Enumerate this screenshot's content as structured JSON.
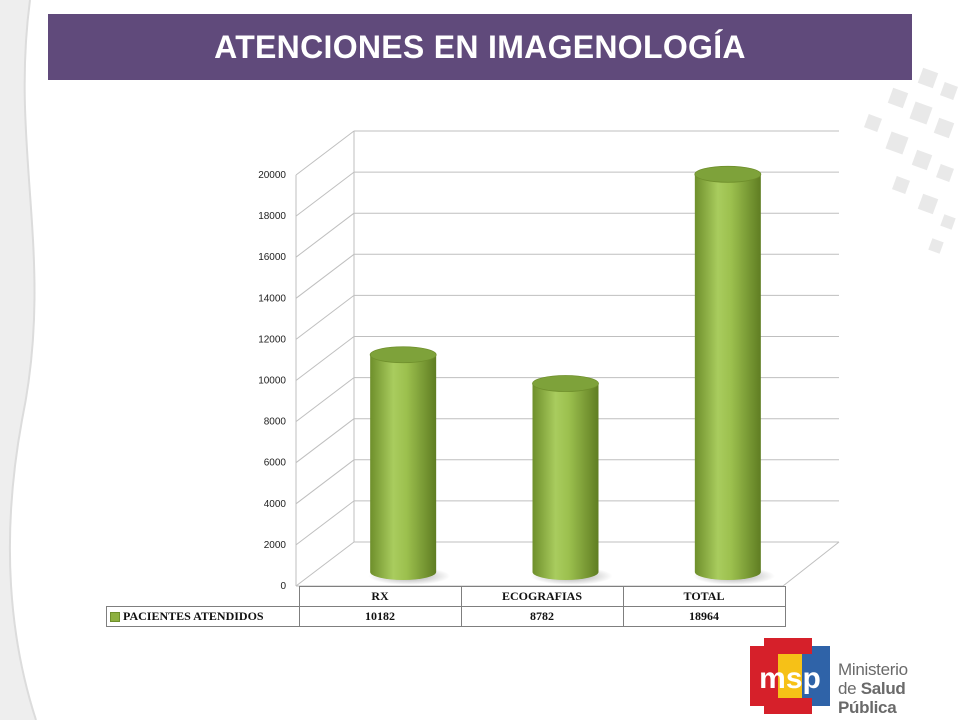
{
  "slide": {
    "title": "ATENCIONES EN IMAGENOLOGÍA"
  },
  "colors": {
    "title_bar": "#604a7b",
    "bar": "#8db040",
    "bar_dark": "#5d7a22",
    "logo_red": "#d6202a",
    "logo_yellow": "#f6c117",
    "logo_blue": "#2f63a8"
  },
  "chart_data": {
    "type": "bar",
    "style": "3d-cylinder",
    "categories": [
      "RX",
      "ECOGRAFIAS",
      "TOTAL"
    ],
    "series": [
      {
        "name": "PACIENTES ATENDIDOS",
        "values": [
          10182,
          8782,
          18964
        ]
      }
    ],
    "ylim": [
      0,
      20000
    ],
    "yticks": [
      0,
      2000,
      4000,
      6000,
      8000,
      10000,
      12000,
      14000,
      16000,
      18000,
      20000
    ],
    "grid": true,
    "legend": "data-table-below"
  },
  "table": {
    "headers": [
      "RX",
      "ECOGRAFIAS",
      "TOTAL"
    ],
    "row_label": "PACIENTES ATENDIDOS",
    "values": [
      "10182",
      "8782",
      "18964"
    ]
  },
  "logo": {
    "mark_text": "msp",
    "line1": "Ministerio",
    "line2_prefix": "de ",
    "line2_bold": "Salud Pública"
  }
}
